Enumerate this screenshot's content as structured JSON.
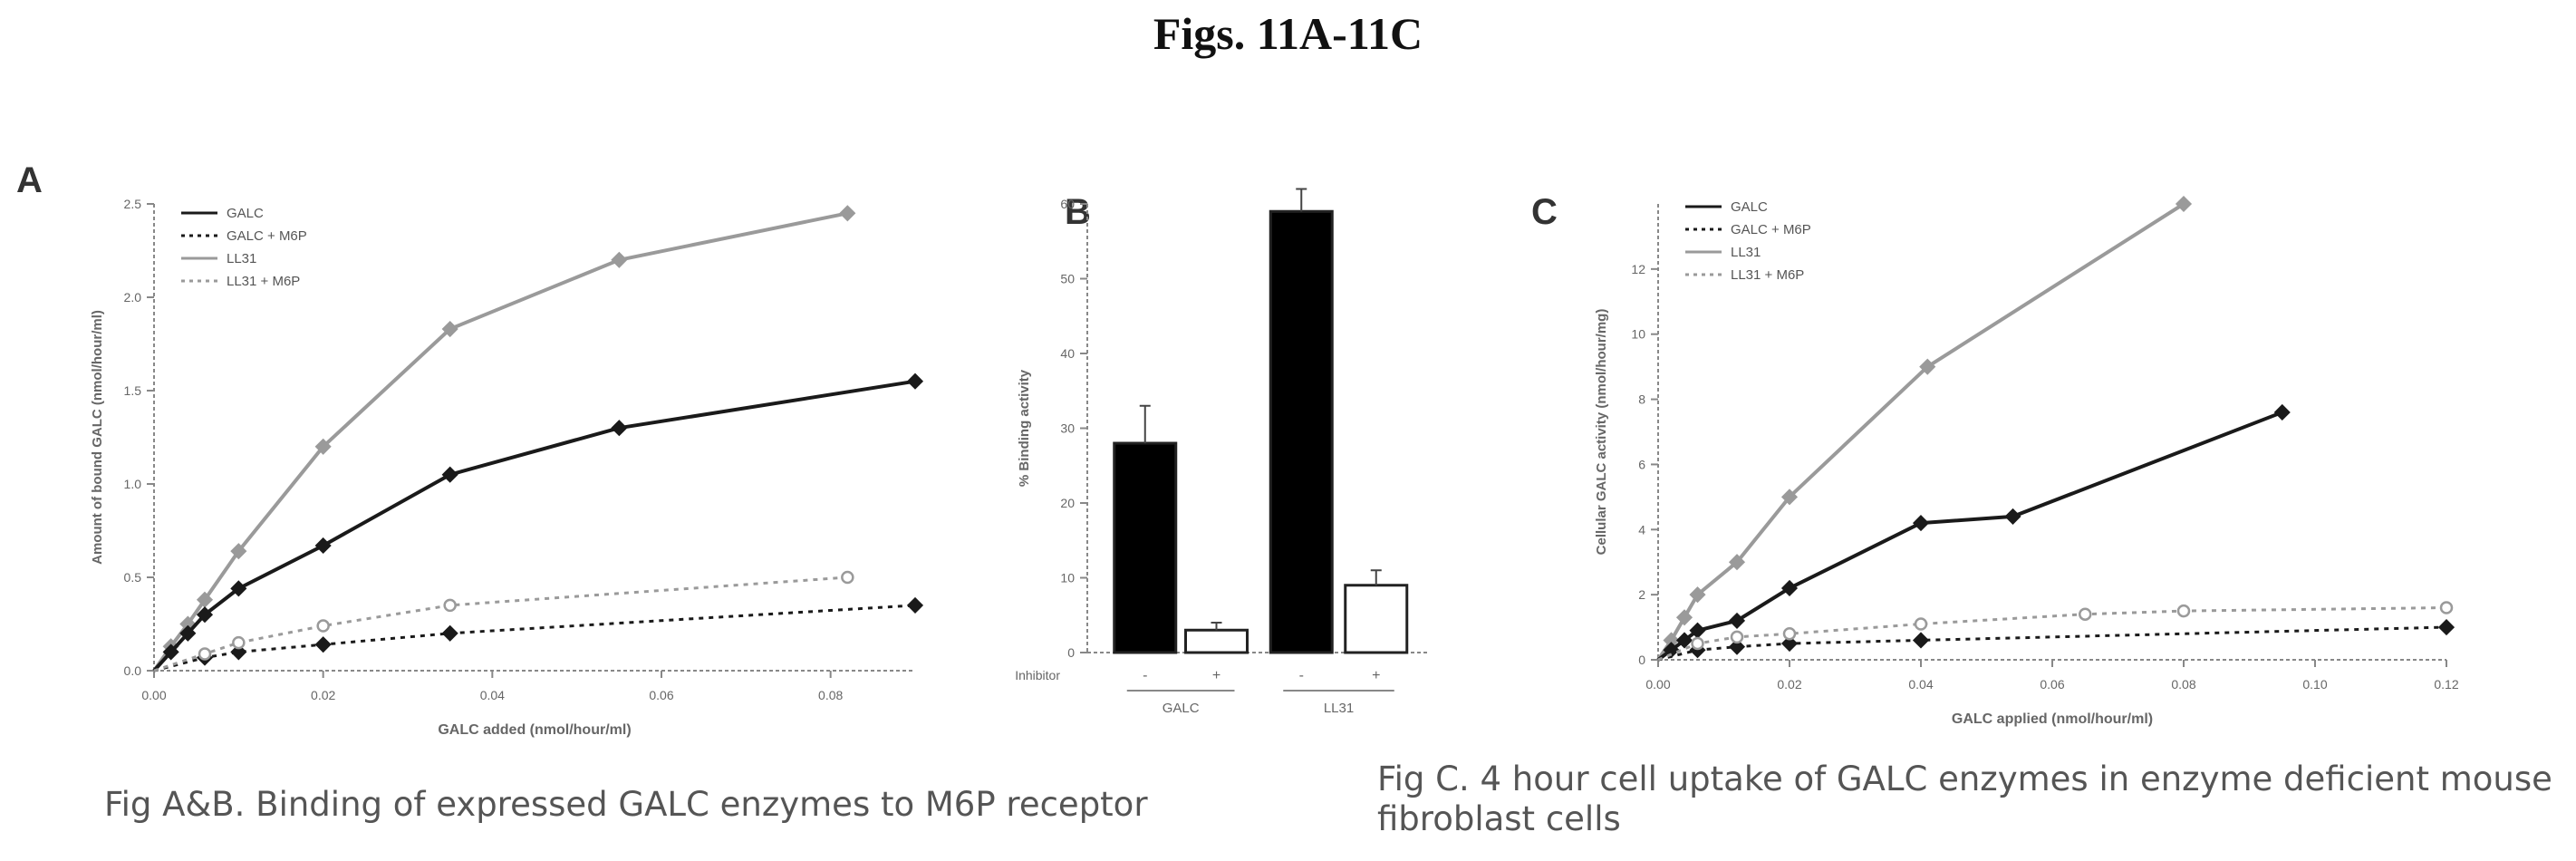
{
  "page_title": "Figs. 11A-11C",
  "captions": {
    "ab": "Fig A&B. Binding of expressed GALC enzymes to M6P receptor",
    "c_line1": "Fig C. 4 hour cell uptake of GALC enzymes in enzyme deficient mouse",
    "c_line2": "fibroblast cells"
  },
  "chart_data": [
    {
      "id": "A",
      "panel_label": "A",
      "type": "line",
      "xlabel": "GALC added (nmol/hour/ml)",
      "ylabel": "Amount of bound GALC (nmol/hour/ml)",
      "xlim": [
        0,
        0.09
      ],
      "ylim": [
        0,
        2.5
      ],
      "xticks": [
        0,
        0.02,
        0.04,
        0.06,
        0.08
      ],
      "xtick_labels": [
        "0.00",
        "0.02",
        "0.04",
        "0.06",
        "0.08"
      ],
      "yticks": [
        0,
        0.5,
        1.0,
        1.5,
        2.0,
        2.5
      ],
      "ytick_labels": [
        "0.0",
        "0.5",
        "1.0",
        "1.5",
        "2.0",
        "2.5"
      ],
      "legend": [
        "GALC",
        "GALC + M6P",
        "LL31",
        "LL31 + M6P"
      ],
      "legend_position": "top-left",
      "series": [
        {
          "name": "LL31",
          "color": "#9a9a9a",
          "style": "solid",
          "marker": "diamond",
          "x": [
            0,
            0.002,
            0.004,
            0.006,
            0.01,
            0.02,
            0.035,
            0.055,
            0.082
          ],
          "y": [
            0,
            0.13,
            0.25,
            0.38,
            0.64,
            1.2,
            1.83,
            2.2,
            2.45
          ]
        },
        {
          "name": "GALC",
          "color": "#1a1a1a",
          "style": "solid",
          "marker": "diamond",
          "x": [
            0,
            0.002,
            0.004,
            0.006,
            0.01,
            0.02,
            0.035,
            0.055,
            0.09
          ],
          "y": [
            0,
            0.1,
            0.2,
            0.3,
            0.44,
            0.67,
            1.05,
            1.3,
            1.55
          ]
        },
        {
          "name": "GALC + M6P",
          "color": "#1a1a1a",
          "style": "dotted",
          "marker": "diamond",
          "x": [
            0,
            0.006,
            0.01,
            0.02,
            0.035,
            0.09
          ],
          "y": [
            0,
            0.07,
            0.1,
            0.14,
            0.2,
            0.35
          ]
        },
        {
          "name": "LL31 + M6P",
          "color": "#9a9a9a",
          "style": "dotted",
          "marker": "circle",
          "x": [
            0,
            0.006,
            0.01,
            0.02,
            0.035,
            0.082
          ],
          "y": [
            0,
            0.09,
            0.15,
            0.24,
            0.35,
            0.5
          ]
        }
      ]
    },
    {
      "id": "B",
      "panel_label": "B",
      "type": "bar",
      "ylabel": "% Binding activity",
      "ylim": [
        0,
        60
      ],
      "yticks": [
        0,
        10,
        20,
        30,
        40,
        50,
        60
      ],
      "ytick_labels": [
        "0",
        "10",
        "20",
        "30",
        "40",
        "50",
        "60"
      ],
      "row_label": "Inhibitor",
      "group_labels": [
        "GALC",
        "LL31"
      ],
      "sublabels": [
        "-",
        "+"
      ],
      "bars": [
        {
          "group": 0,
          "inhibitor": "-",
          "value": 28,
          "err": 5,
          "fill": "#000000"
        },
        {
          "group": 0,
          "inhibitor": "+",
          "value": 3,
          "err": 1,
          "fill": "#ffffff"
        },
        {
          "group": 1,
          "inhibitor": "-",
          "value": 59,
          "err": 3,
          "fill": "#000000"
        },
        {
          "group": 1,
          "inhibitor": "+",
          "value": 9,
          "err": 2,
          "fill": "#ffffff"
        }
      ]
    },
    {
      "id": "C",
      "panel_label": "C",
      "type": "line",
      "xlabel": "GALC applied (nmol/hour/ml)",
      "ylabel": "Cellular GALC activity (nmol/hour/mg)",
      "xlim": [
        0,
        0.12
      ],
      "ylim": [
        0,
        14
      ],
      "xticks": [
        0,
        0.02,
        0.04,
        0.06,
        0.08,
        0.1,
        0.12
      ],
      "xtick_labels": [
        "0.00",
        "0.02",
        "0.04",
        "0.06",
        "0.08",
        "0.10",
        "0.12"
      ],
      "yticks": [
        0,
        2,
        4,
        6,
        8,
        10,
        12
      ],
      "ytick_labels": [
        "0",
        "2",
        "4",
        "6",
        "8",
        "10",
        "12"
      ],
      "legend": [
        "GALC",
        "GALC + M6P",
        "LL31",
        "LL31 + M6P"
      ],
      "legend_position": "top-left",
      "series": [
        {
          "name": "LL31",
          "color": "#9a9a9a",
          "style": "solid",
          "marker": "diamond",
          "x": [
            0,
            0.002,
            0.004,
            0.006,
            0.012,
            0.02,
            0.041,
            0.08
          ],
          "y": [
            0,
            0.6,
            1.3,
            2.0,
            3.0,
            5.0,
            9.0,
            14.0
          ]
        },
        {
          "name": "GALC",
          "color": "#1a1a1a",
          "style": "solid",
          "marker": "diamond",
          "x": [
            0,
            0.002,
            0.004,
            0.006,
            0.012,
            0.02,
            0.04,
            0.054,
            0.095
          ],
          "y": [
            0,
            0.3,
            0.6,
            0.9,
            1.2,
            2.2,
            4.2,
            4.4,
            7.6
          ]
        },
        {
          "name": "GALC + M6P",
          "color": "#1a1a1a",
          "style": "dotted",
          "marker": "diamond",
          "x": [
            0,
            0.006,
            0.012,
            0.02,
            0.04,
            0.12
          ],
          "y": [
            0,
            0.3,
            0.4,
            0.5,
            0.6,
            1.0
          ]
        },
        {
          "name": "LL31 + M6P",
          "color": "#9a9a9a",
          "style": "dotted",
          "marker": "circle",
          "x": [
            0,
            0.006,
            0.012,
            0.02,
            0.04,
            0.065,
            0.08,
            0.12
          ],
          "y": [
            0,
            0.5,
            0.7,
            0.8,
            1.1,
            1.4,
            1.5,
            1.6
          ]
        }
      ]
    }
  ]
}
